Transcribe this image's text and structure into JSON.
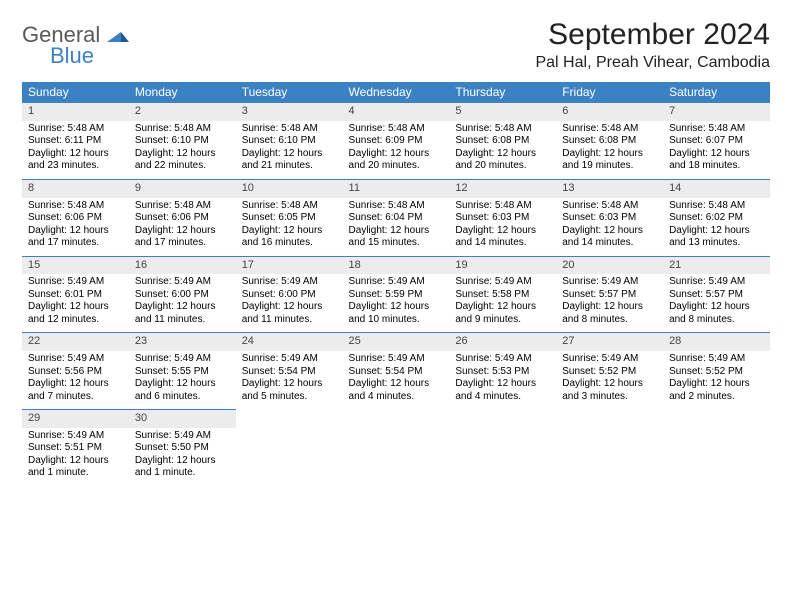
{
  "logo": {
    "general": "General",
    "blue": "Blue"
  },
  "header": {
    "title": "September 2024",
    "location": "Pal Hal, Preah Vihear, Cambodia"
  },
  "colors": {
    "header_bg": "#3b82c4",
    "header_text": "#ffffff",
    "daynum_bg": "#ececec",
    "daynum_border": "#3b82c4",
    "logo_gray": "#5a5a5a",
    "logo_blue": "#3b82c4",
    "page_bg": "#ffffff"
  },
  "weekdays": [
    "Sunday",
    "Monday",
    "Tuesday",
    "Wednesday",
    "Thursday",
    "Friday",
    "Saturday"
  ],
  "days": [
    {
      "n": "1",
      "sr": "Sunrise: 5:48 AM",
      "ss": "Sunset: 6:11 PM",
      "dl": "Daylight: 12 hours and 23 minutes."
    },
    {
      "n": "2",
      "sr": "Sunrise: 5:48 AM",
      "ss": "Sunset: 6:10 PM",
      "dl": "Daylight: 12 hours and 22 minutes."
    },
    {
      "n": "3",
      "sr": "Sunrise: 5:48 AM",
      "ss": "Sunset: 6:10 PM",
      "dl": "Daylight: 12 hours and 21 minutes."
    },
    {
      "n": "4",
      "sr": "Sunrise: 5:48 AM",
      "ss": "Sunset: 6:09 PM",
      "dl": "Daylight: 12 hours and 20 minutes."
    },
    {
      "n": "5",
      "sr": "Sunrise: 5:48 AM",
      "ss": "Sunset: 6:08 PM",
      "dl": "Daylight: 12 hours and 20 minutes."
    },
    {
      "n": "6",
      "sr": "Sunrise: 5:48 AM",
      "ss": "Sunset: 6:08 PM",
      "dl": "Daylight: 12 hours and 19 minutes."
    },
    {
      "n": "7",
      "sr": "Sunrise: 5:48 AM",
      "ss": "Sunset: 6:07 PM",
      "dl": "Daylight: 12 hours and 18 minutes."
    },
    {
      "n": "8",
      "sr": "Sunrise: 5:48 AM",
      "ss": "Sunset: 6:06 PM",
      "dl": "Daylight: 12 hours and 17 minutes."
    },
    {
      "n": "9",
      "sr": "Sunrise: 5:48 AM",
      "ss": "Sunset: 6:06 PM",
      "dl": "Daylight: 12 hours and 17 minutes."
    },
    {
      "n": "10",
      "sr": "Sunrise: 5:48 AM",
      "ss": "Sunset: 6:05 PM",
      "dl": "Daylight: 12 hours and 16 minutes."
    },
    {
      "n": "11",
      "sr": "Sunrise: 5:48 AM",
      "ss": "Sunset: 6:04 PM",
      "dl": "Daylight: 12 hours and 15 minutes."
    },
    {
      "n": "12",
      "sr": "Sunrise: 5:48 AM",
      "ss": "Sunset: 6:03 PM",
      "dl": "Daylight: 12 hours and 14 minutes."
    },
    {
      "n": "13",
      "sr": "Sunrise: 5:48 AM",
      "ss": "Sunset: 6:03 PM",
      "dl": "Daylight: 12 hours and 14 minutes."
    },
    {
      "n": "14",
      "sr": "Sunrise: 5:48 AM",
      "ss": "Sunset: 6:02 PM",
      "dl": "Daylight: 12 hours and 13 minutes."
    },
    {
      "n": "15",
      "sr": "Sunrise: 5:49 AM",
      "ss": "Sunset: 6:01 PM",
      "dl": "Daylight: 12 hours and 12 minutes."
    },
    {
      "n": "16",
      "sr": "Sunrise: 5:49 AM",
      "ss": "Sunset: 6:00 PM",
      "dl": "Daylight: 12 hours and 11 minutes."
    },
    {
      "n": "17",
      "sr": "Sunrise: 5:49 AM",
      "ss": "Sunset: 6:00 PM",
      "dl": "Daylight: 12 hours and 11 minutes."
    },
    {
      "n": "18",
      "sr": "Sunrise: 5:49 AM",
      "ss": "Sunset: 5:59 PM",
      "dl": "Daylight: 12 hours and 10 minutes."
    },
    {
      "n": "19",
      "sr": "Sunrise: 5:49 AM",
      "ss": "Sunset: 5:58 PM",
      "dl": "Daylight: 12 hours and 9 minutes."
    },
    {
      "n": "20",
      "sr": "Sunrise: 5:49 AM",
      "ss": "Sunset: 5:57 PM",
      "dl": "Daylight: 12 hours and 8 minutes."
    },
    {
      "n": "21",
      "sr": "Sunrise: 5:49 AM",
      "ss": "Sunset: 5:57 PM",
      "dl": "Daylight: 12 hours and 8 minutes."
    },
    {
      "n": "22",
      "sr": "Sunrise: 5:49 AM",
      "ss": "Sunset: 5:56 PM",
      "dl": "Daylight: 12 hours and 7 minutes."
    },
    {
      "n": "23",
      "sr": "Sunrise: 5:49 AM",
      "ss": "Sunset: 5:55 PM",
      "dl": "Daylight: 12 hours and 6 minutes."
    },
    {
      "n": "24",
      "sr": "Sunrise: 5:49 AM",
      "ss": "Sunset: 5:54 PM",
      "dl": "Daylight: 12 hours and 5 minutes."
    },
    {
      "n": "25",
      "sr": "Sunrise: 5:49 AM",
      "ss": "Sunset: 5:54 PM",
      "dl": "Daylight: 12 hours and 4 minutes."
    },
    {
      "n": "26",
      "sr": "Sunrise: 5:49 AM",
      "ss": "Sunset: 5:53 PM",
      "dl": "Daylight: 12 hours and 4 minutes."
    },
    {
      "n": "27",
      "sr": "Sunrise: 5:49 AM",
      "ss": "Sunset: 5:52 PM",
      "dl": "Daylight: 12 hours and 3 minutes."
    },
    {
      "n": "28",
      "sr": "Sunrise: 5:49 AM",
      "ss": "Sunset: 5:52 PM",
      "dl": "Daylight: 12 hours and 2 minutes."
    },
    {
      "n": "29",
      "sr": "Sunrise: 5:49 AM",
      "ss": "Sunset: 5:51 PM",
      "dl": "Daylight: 12 hours and 1 minute."
    },
    {
      "n": "30",
      "sr": "Sunrise: 5:49 AM",
      "ss": "Sunset: 5:50 PM",
      "dl": "Daylight: 12 hours and 1 minute."
    }
  ],
  "grid": {
    "start_weekday": 0,
    "total_days": 30,
    "rows": 5,
    "cols": 7
  }
}
